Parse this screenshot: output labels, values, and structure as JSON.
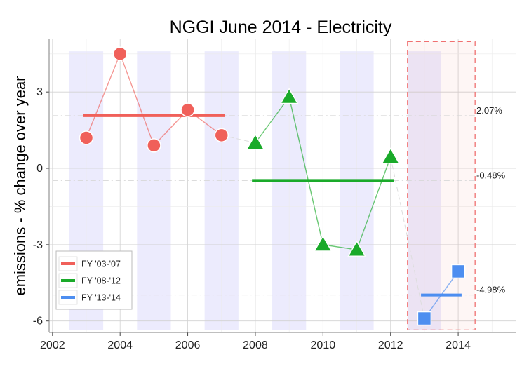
{
  "chart_data": {
    "type": "line",
    "title": "NGGI June 2014 - Electricity",
    "xlabel": "",
    "ylabel": "emissions - % change over year",
    "xlim": [
      2001.9,
      2015.7
    ],
    "ylim": [
      -6.45,
      5.1
    ],
    "x_ticks": [
      2002,
      2004,
      2006,
      2008,
      2010,
      2012,
      2014
    ],
    "y_ticks": [
      -6,
      -3,
      0,
      3
    ],
    "grid": true,
    "legend_position": "bottom-left",
    "shaded_year_bands": [
      2003,
      2005,
      2007,
      2009,
      2011,
      2013
    ],
    "highlight_box": {
      "x": [
        2012.5,
        2014.5
      ]
    },
    "series": [
      {
        "name": "FY '03-'07",
        "color": "#F0605A",
        "marker": "circle",
        "x": [
          2003,
          2004,
          2005,
          2006,
          2007
        ],
        "y": [
          1.2,
          4.5,
          0.9,
          2.3,
          1.3
        ],
        "mean": 2.07,
        "mean_x": [
          2003,
          2007
        ]
      },
      {
        "name": "FY '08-'12",
        "color": "#1AAA2A",
        "marker": "triangle",
        "x": [
          2008,
          2009,
          2010,
          2011,
          2012
        ],
        "y": [
          1.0,
          2.8,
          -3.0,
          -3.2,
          0.45
        ],
        "mean": -0.48,
        "mean_x": [
          2008,
          2012
        ]
      },
      {
        "name": "FY '13-'14",
        "color": "#4D8EF0",
        "marker": "square",
        "x": [
          2013,
          2014
        ],
        "y": [
          -5.9,
          -4.05
        ],
        "mean": -4.98,
        "mean_x": [
          2013,
          2014
        ]
      }
    ],
    "connector_lines": [
      {
        "x": [
          2007,
          2008
        ],
        "y": [
          1.3,
          1.0
        ]
      },
      {
        "x": [
          2012,
          2013
        ],
        "y": [
          0.45,
          -5.9
        ]
      }
    ],
    "annotations": [
      "2.07%",
      "-0.48%",
      "-4.98%"
    ]
  }
}
